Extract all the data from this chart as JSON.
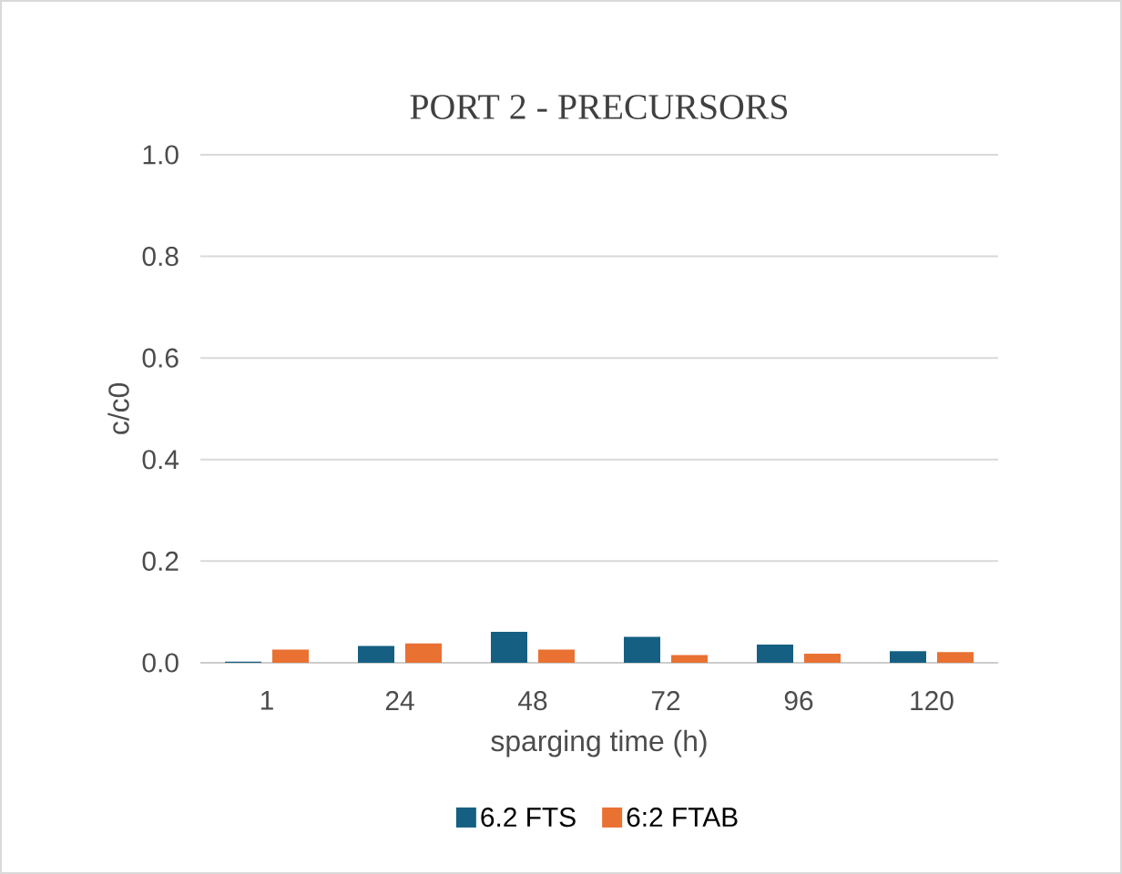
{
  "chart_data": {
    "type": "bar",
    "title": "PORT 2 - PRECURSORS",
    "xlabel": "sparging time (h)",
    "ylabel": "c/c0",
    "categories": [
      "1",
      "24",
      "48",
      "72",
      "96",
      "120"
    ],
    "series": [
      {
        "name": "6.2 FTS",
        "color": "#156082",
        "values": [
          0.002,
          0.033,
          0.061,
          0.051,
          0.036,
          0.023
        ]
      },
      {
        "name": "6:2 FTAB",
        "color": "#e97132",
        "values": [
          0.026,
          0.038,
          0.026,
          0.015,
          0.018,
          0.021
        ]
      }
    ],
    "ylim": [
      0,
      1
    ],
    "yticks": [
      {
        "value": 0,
        "label": "0.0"
      },
      {
        "value": 0.2,
        "label": "0.2"
      },
      {
        "value": 0.4,
        "label": "0.4"
      },
      {
        "value": 0.6,
        "label": "0.6"
      },
      {
        "value": 0.8,
        "label": "0.8"
      },
      {
        "value": 1,
        "label": "1.0"
      }
    ],
    "grid": "y",
    "legend": "bottom"
  }
}
